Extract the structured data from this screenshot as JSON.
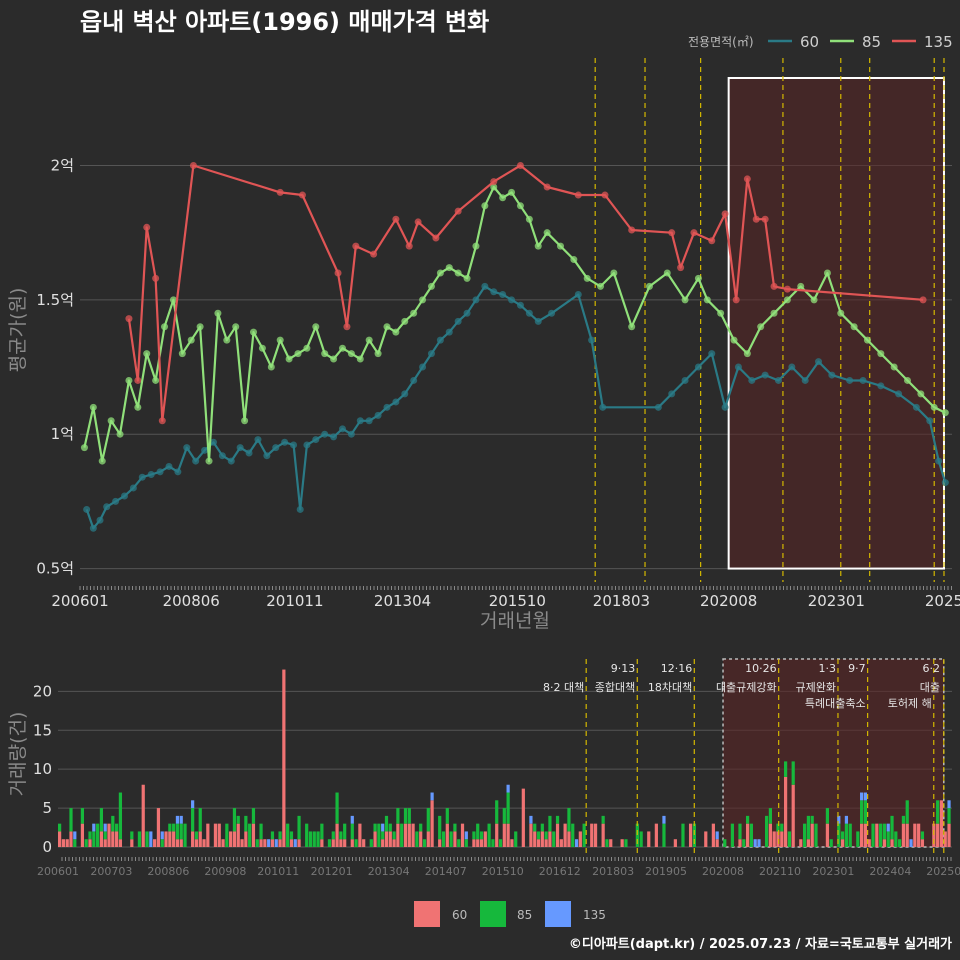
{
  "credit": "©디아파트(dapt.kr) / 2025.07.23 / 자료=국토교통부 실거래가",
  "colors": {
    "background": "#2b2b2b",
    "s60": "#2a7a86",
    "s85": "#90e07a",
    "s135": "#e05555",
    "bar60": "#f07373",
    "bar85": "#16b83c",
    "bar135": "#6699ff",
    "policy": "#d4b800",
    "highlight": "#5a2525",
    "grid": "#555555"
  },
  "chart_data": [
    {
      "type": "line",
      "title": "읍내 벽산 아파트(1996) 매매가격 변화",
      "xlabel": "거래년월",
      "ylabel": "평균가(원)",
      "legend_title": "전용면적(㎡)",
      "legend_position": "top-right",
      "x_range": [
        2006.0,
        2025.6
      ],
      "ylim": [
        0.45,
        2.4
      ],
      "y_ticks": [
        0.5,
        1.0,
        1.5,
        2.0
      ],
      "y_tick_labels": [
        "0.5억",
        "1억",
        "1.5억",
        "2억"
      ],
      "x_ticks": [
        2006.0,
        2008.5,
        2010.83,
        2013.25,
        2015.83,
        2018.17,
        2020.58,
        2023.0,
        2025.42
      ],
      "x_tick_labels": [
        "200601",
        "200806",
        "201011",
        "201304",
        "201510",
        "201803",
        "202008",
        "202301",
        "2025"
      ],
      "policy_lines": [
        2017.58,
        2018.7,
        2019.95,
        2021.8,
        2023.1,
        2023.75,
        2025.2,
        2025.42
      ],
      "highlight_range": [
        2020.58,
        2025.42
      ],
      "series": [
        {
          "name": "60",
          "x": [
            2006.15,
            2006.3,
            2006.45,
            2006.6,
            2006.8,
            2007.0,
            2007.2,
            2007.4,
            2007.6,
            2007.8,
            2008.0,
            2008.2,
            2008.4,
            2008.6,
            2008.8,
            2009.0,
            2009.2,
            2009.4,
            2009.6,
            2009.8,
            2010.0,
            2010.2,
            2010.4,
            2010.6,
            2010.8,
            2010.95,
            2011.1,
            2011.3,
            2011.5,
            2011.7,
            2011.9,
            2012.1,
            2012.3,
            2012.5,
            2012.7,
            2012.9,
            2013.1,
            2013.3,
            2013.5,
            2013.7,
            2013.9,
            2014.1,
            2014.3,
            2014.5,
            2014.7,
            2014.9,
            2015.1,
            2015.3,
            2015.5,
            2015.7,
            2015.9,
            2016.1,
            2016.3,
            2016.6,
            2017.2,
            2017.5,
            2017.75,
            2019.0,
            2019.3,
            2019.6,
            2019.9,
            2020.2,
            2020.5,
            2020.8,
            2021.1,
            2021.4,
            2021.7,
            2022.0,
            2022.3,
            2022.6,
            2022.9,
            2023.3,
            2023.6,
            2024.0,
            2024.4,
            2024.8,
            2025.1,
            2025.3,
            2025.45
          ],
          "values": [
            0.72,
            0.65,
            0.68,
            0.73,
            0.75,
            0.77,
            0.8,
            0.84,
            0.85,
            0.86,
            0.88,
            0.86,
            0.95,
            0.9,
            0.94,
            0.97,
            0.92,
            0.9,
            0.95,
            0.93,
            0.98,
            0.92,
            0.95,
            0.97,
            0.96,
            0.72,
            0.96,
            0.98,
            1.0,
            0.99,
            1.02,
            1.0,
            1.05,
            1.05,
            1.07,
            1.1,
            1.12,
            1.15,
            1.2,
            1.25,
            1.3,
            1.35,
            1.38,
            1.42,
            1.45,
            1.5,
            1.55,
            1.53,
            1.52,
            1.5,
            1.48,
            1.45,
            1.42,
            1.45,
            1.52,
            1.35,
            1.1,
            1.1,
            1.15,
            1.2,
            1.25,
            1.3,
            1.1,
            1.25,
            1.2,
            1.22,
            1.2,
            1.25,
            1.2,
            1.27,
            1.22,
            1.2,
            1.2,
            1.18,
            1.15,
            1.1,
            1.05,
            0.9,
            0.82
          ]
        },
        {
          "name": "85",
          "x": [
            2006.1,
            2006.3,
            2006.5,
            2006.7,
            2006.9,
            2007.1,
            2007.3,
            2007.5,
            2007.7,
            2007.9,
            2008.1,
            2008.3,
            2008.5,
            2008.7,
            2008.9,
            2009.1,
            2009.3,
            2009.5,
            2009.7,
            2009.9,
            2010.1,
            2010.3,
            2010.5,
            2010.7,
            2010.9,
            2011.1,
            2011.3,
            2011.5,
            2011.7,
            2011.9,
            2012.1,
            2012.3,
            2012.5,
            2012.7,
            2012.9,
            2013.1,
            2013.3,
            2013.5,
            2013.7,
            2013.9,
            2014.1,
            2014.3,
            2014.5,
            2014.7,
            2014.9,
            2015.1,
            2015.3,
            2015.5,
            2015.7,
            2015.9,
            2016.1,
            2016.3,
            2016.5,
            2016.8,
            2017.1,
            2017.4,
            2017.7,
            2018.0,
            2018.4,
            2018.8,
            2019.2,
            2019.6,
            2019.9,
            2020.1,
            2020.4,
            2020.7,
            2021.0,
            2021.3,
            2021.6,
            2021.9,
            2022.2,
            2022.5,
            2022.8,
            2023.1,
            2023.4,
            2023.7,
            2024.0,
            2024.3,
            2024.6,
            2024.9,
            2025.2,
            2025.45
          ],
          "values": [
            0.95,
            1.1,
            0.9,
            1.05,
            1.0,
            1.2,
            1.1,
            1.3,
            1.2,
            1.4,
            1.5,
            1.3,
            1.35,
            1.4,
            0.9,
            1.45,
            1.35,
            1.4,
            1.05,
            1.38,
            1.32,
            1.25,
            1.35,
            1.28,
            1.3,
            1.32,
            1.4,
            1.3,
            1.28,
            1.32,
            1.3,
            1.28,
            1.35,
            1.3,
            1.4,
            1.38,
            1.42,
            1.45,
            1.5,
            1.55,
            1.6,
            1.62,
            1.6,
            1.58,
            1.7,
            1.85,
            1.92,
            1.88,
            1.9,
            1.85,
            1.8,
            1.7,
            1.75,
            1.7,
            1.65,
            1.58,
            1.55,
            1.6,
            1.4,
            1.55,
            1.6,
            1.5,
            1.58,
            1.5,
            1.45,
            1.35,
            1.3,
            1.4,
            1.45,
            1.5,
            1.55,
            1.5,
            1.6,
            1.45,
            1.4,
            1.35,
            1.3,
            1.25,
            1.2,
            1.15,
            1.1,
            1.08
          ]
        },
        {
          "name": "135",
          "x": [
            2007.1,
            2007.3,
            2007.5,
            2007.7,
            2007.85,
            2008.55,
            2010.5,
            2011.0,
            2011.8,
            2012.0,
            2012.2,
            2012.6,
            2013.1,
            2013.4,
            2013.6,
            2014.0,
            2014.5,
            2015.3,
            2015.9,
            2016.5,
            2017.2,
            2017.8,
            2018.4,
            2019.3,
            2019.5,
            2019.8,
            2020.2,
            2020.5,
            2020.75,
            2021.0,
            2021.2,
            2021.4,
            2021.6,
            2021.9,
            2024.95
          ],
          "values": [
            1.43,
            1.2,
            1.77,
            1.58,
            1.05,
            2.0,
            1.9,
            1.89,
            1.6,
            1.4,
            1.7,
            1.67,
            1.8,
            1.7,
            1.79,
            1.73,
            1.83,
            1.94,
            2.0,
            1.92,
            1.89,
            1.89,
            1.76,
            1.75,
            1.62,
            1.75,
            1.72,
            1.82,
            1.5,
            1.95,
            1.8,
            1.8,
            1.55,
            1.54,
            1.5
          ]
        }
      ]
    },
    {
      "type": "bar",
      "ylabel": "거래량(건)",
      "ylim": [
        0,
        23
      ],
      "y_ticks": [
        0,
        5,
        10,
        15,
        20
      ],
      "y_tick_labels": [
        "0",
        "5",
        "10",
        "15",
        "20"
      ],
      "x_range": [
        2006.0,
        2025.6
      ],
      "x_ticks": [
        2006.0,
        2007.17,
        2008.42,
        2009.67,
        2010.83,
        2012.0,
        2013.25,
        2014.5,
        2015.75,
        2017.0,
        2018.17,
        2019.33,
        2020.58,
        2021.83,
        2023.0,
        2024.25,
        2025.42
      ],
      "x_tick_labels": [
        "200601",
        "200703",
        "200806",
        "200908",
        "201011",
        "201201",
        "201304",
        "201407",
        "201510",
        "201612",
        "201803",
        "201905",
        "202008",
        "202110",
        "202301",
        "202404",
        "20250"
      ],
      "annotations": [
        {
          "x": 2017.58,
          "date": "",
          "text": "8·2 대책"
        },
        {
          "x": 2018.7,
          "date": "9·13",
          "text": "종합대책"
        },
        {
          "x": 2019.95,
          "date": "12·16",
          "text": "18차대책"
        },
        {
          "x": 2021.8,
          "date": "10·26",
          "text": "대출규제강화"
        },
        {
          "x": 2023.1,
          "date": "1·3",
          "text": "규제완화"
        },
        {
          "x": 2023.75,
          "date": "9·7",
          "text": "특례대출축소"
        },
        {
          "x": 2025.2,
          "date": "",
          "text": "토허제 해"
        },
        {
          "x": 2025.42,
          "date": "6·2",
          "text": "대출"
        }
      ],
      "highlight_range": [
        2020.58,
        2025.42
      ],
      "series": [
        {
          "name": "60",
          "peaks": [
            [
              2010.9,
              22.8
            ],
            [
              2007.8,
              8
            ],
            [
              2016.2,
              7.5
            ],
            [
              2021.9,
              9
            ],
            [
              2022.1,
              8
            ],
            [
              2025.3,
              6
            ],
            [
              2008.2,
              5
            ],
            [
              2014.2,
              6
            ],
            [
              2017.7,
              3
            ]
          ]
        },
        {
          "name": "85",
          "peaks": [
            [
              2007.3,
              6
            ],
            [
              2012.1,
              4
            ],
            [
              2015.8,
              4
            ],
            [
              2021.5,
              4
            ]
          ]
        },
        {
          "name": "135",
          "peaks": [
            [
              2008.0,
              2
            ],
            [
              2011.2,
              1
            ]
          ]
        }
      ]
    }
  ]
}
